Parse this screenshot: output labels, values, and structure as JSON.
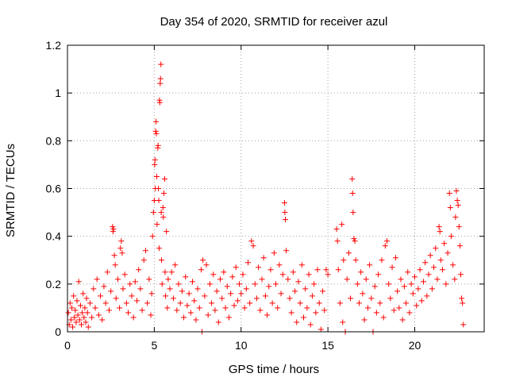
{
  "chart_data": {
    "type": "scatter",
    "title": "Day 354 of 2020, SRMTID for receiver azul",
    "xlabel": "GPS time / hours",
    "ylabel": "SRMTID / TECUs",
    "xlim": [
      0,
      24
    ],
    "ylim": [
      0,
      1.2
    ],
    "xticks": [
      0,
      5,
      10,
      15,
      20
    ],
    "xtick_labels": [
      "0",
      "5",
      "10",
      "15",
      "20"
    ],
    "yticks": [
      0,
      0.2,
      0.4,
      0.6,
      0.8,
      1.0,
      1.2
    ],
    "ytick_labels": [
      "0",
      "0.2",
      "0.4",
      "0.6",
      "0.8",
      "1",
      "1.2"
    ],
    "grid": true,
    "marker": "+",
    "color": "#ff0000",
    "series": [
      {
        "name": "SRMTID",
        "points": [
          [
            0.05,
            0.08
          ],
          [
            0.1,
            0.03
          ],
          [
            0.15,
            0.12
          ],
          [
            0.2,
            0.05
          ],
          [
            0.25,
            0.1
          ],
          [
            0.3,
            0.02
          ],
          [
            0.35,
            0.15
          ],
          [
            0.4,
            0.06
          ],
          [
            0.45,
            0.09
          ],
          [
            0.5,
            0.04
          ],
          [
            0.55,
            0.13
          ],
          [
            0.6,
            0.07
          ],
          [
            0.65,
            0.21
          ],
          [
            0.7,
            0.05
          ],
          [
            0.75,
            0.11
          ],
          [
            0.8,
            0.03
          ],
          [
            0.85,
            0.08
          ],
          [
            0.9,
            0.16
          ],
          [
            0.95,
            0.06
          ],
          [
            1.0,
            0.1
          ],
          [
            1.05,
            0.04
          ],
          [
            1.1,
            0.14
          ],
          [
            1.15,
            0.08
          ],
          [
            1.2,
            0.02
          ],
          [
            1.3,
            0.12
          ],
          [
            1.4,
            0.06
          ],
          [
            1.5,
            0.18
          ],
          [
            1.6,
            0.1
          ],
          [
            1.7,
            0.22
          ],
          [
            1.8,
            0.07
          ],
          [
            1.9,
            0.15
          ],
          [
            2.0,
            0.05
          ],
          [
            2.1,
            0.19
          ],
          [
            2.2,
            0.12
          ],
          [
            2.3,
            0.25
          ],
          [
            2.4,
            0.09
          ],
          [
            2.5,
            0.17
          ],
          [
            2.6,
            0.44
          ],
          [
            2.62,
            0.42
          ],
          [
            2.65,
            0.43
          ],
          [
            2.7,
            0.32
          ],
          [
            2.75,
            0.28
          ],
          [
            2.8,
            0.14
          ],
          [
            2.9,
            0.22
          ],
          [
            3.0,
            0.1
          ],
          [
            3.05,
            0.35
          ],
          [
            3.1,
            0.38
          ],
          [
            3.15,
            0.33
          ],
          [
            3.2,
            0.18
          ],
          [
            3.3,
            0.24
          ],
          [
            3.4,
            0.12
          ],
          [
            3.5,
            0.08
          ],
          [
            3.6,
            0.2
          ],
          [
            3.7,
            0.15
          ],
          [
            3.8,
            0.06
          ],
          [
            3.9,
            0.21
          ],
          [
            4.0,
            0.13
          ],
          [
            4.1,
            0.26
          ],
          [
            4.2,
            0.18
          ],
          [
            4.3,
            0.09
          ],
          [
            4.4,
            0.3
          ],
          [
            4.5,
            0.34
          ],
          [
            4.6,
            0.12
          ],
          [
            4.7,
            0.22
          ],
          [
            4.8,
            0.07
          ],
          [
            4.85,
            0.16
          ],
          [
            4.9,
            0.4
          ],
          [
            4.95,
            0.5
          ],
          [
            5.0,
            0.55
          ],
          [
            5.02,
            0.7
          ],
          [
            5.04,
            0.72
          ],
          [
            5.06,
            0.6
          ],
          [
            5.08,
            0.84
          ],
          [
            5.1,
            0.88
          ],
          [
            5.12,
            0.83
          ],
          [
            5.14,
            0.65
          ],
          [
            5.16,
            0.45
          ],
          [
            5.2,
            0.77
          ],
          [
            5.22,
            0.78
          ],
          [
            5.24,
            0.6
          ],
          [
            5.26,
            0.55
          ],
          [
            5.28,
            0.35
          ],
          [
            5.3,
            0.97
          ],
          [
            5.32,
            0.96
          ],
          [
            5.34,
            1.04
          ],
          [
            5.36,
            1.06
          ],
          [
            5.38,
            1.12
          ],
          [
            5.4,
            0.5
          ],
          [
            5.42,
            0.3
          ],
          [
            5.45,
            0.2
          ],
          [
            5.5,
            0.52
          ],
          [
            5.52,
            0.48
          ],
          [
            5.55,
            0.58
          ],
          [
            5.6,
            0.64
          ],
          [
            5.62,
            0.25
          ],
          [
            5.65,
            0.15
          ],
          [
            5.7,
            0.42
          ],
          [
            5.75,
            0.1
          ],
          [
            5.8,
            0.22
          ],
          [
            5.9,
            0.18
          ],
          [
            6.0,
            0.25
          ],
          [
            6.1,
            0.14
          ],
          [
            6.2,
            0.28
          ],
          [
            6.3,
            0.09
          ],
          [
            6.4,
            0.2
          ],
          [
            6.5,
            0.12
          ],
          [
            6.6,
            0.17
          ],
          [
            6.7,
            0.06
          ],
          [
            6.8,
            0.23
          ],
          [
            6.9,
            0.11
          ],
          [
            7.0,
            0.16
          ],
          [
            7.1,
            0.08
          ],
          [
            7.2,
            0.21
          ],
          [
            7.3,
            0.13
          ],
          [
            7.4,
            0.05
          ],
          [
            7.5,
            0.18
          ],
          [
            7.6,
            0.1
          ],
          [
            7.7,
            0.26
          ],
          [
            7.75,
            0.0
          ],
          [
            7.8,
            0.3
          ],
          [
            7.9,
            0.15
          ],
          [
            8.0,
            0.28
          ],
          [
            8.1,
            0.07
          ],
          [
            8.2,
            0.2
          ],
          [
            8.3,
            0.12
          ],
          [
            8.4,
            0.24
          ],
          [
            8.5,
            0.09
          ],
          [
            8.6,
            0.17
          ],
          [
            8.7,
            0.04
          ],
          [
            8.8,
            0.22
          ],
          [
            8.9,
            0.14
          ],
          [
            9.0,
            0.25
          ],
          [
            9.1,
            0.1
          ],
          [
            9.2,
            0.19
          ],
          [
            9.3,
            0.06
          ],
          [
            9.4,
            0.16
          ],
          [
            9.5,
            0.23
          ],
          [
            9.6,
            0.11
          ],
          [
            9.7,
            0.27
          ],
          [
            9.8,
            0.13
          ],
          [
            9.9,
            0.2
          ],
          [
            10.0,
            0.16
          ],
          [
            10.1,
            0.24
          ],
          [
            10.2,
            0.1
          ],
          [
            10.3,
            0.18
          ],
          [
            10.4,
            0.29
          ],
          [
            10.5,
            0.12
          ],
          [
            10.6,
            0.38
          ],
          [
            10.7,
            0.36
          ],
          [
            10.8,
            0.2
          ],
          [
            10.9,
            0.14
          ],
          [
            11.0,
            0.27
          ],
          [
            11.1,
            0.09
          ],
          [
            11.2,
            0.22
          ],
          [
            11.3,
            0.31
          ],
          [
            11.4,
            0.15
          ],
          [
            11.5,
            0.07
          ],
          [
            11.6,
            0.19
          ],
          [
            11.7,
            0.26
          ],
          [
            11.8,
            0.12
          ],
          [
            11.9,
            0.33
          ],
          [
            12.0,
            0.2
          ],
          [
            12.1,
            0.1
          ],
          [
            12.2,
            0.28
          ],
          [
            12.3,
            0.16
          ],
          [
            12.4,
            0.24
          ],
          [
            12.5,
            0.54
          ],
          [
            12.52,
            0.5
          ],
          [
            12.55,
            0.47
          ],
          [
            12.6,
            0.34
          ],
          [
            12.7,
            0.22
          ],
          [
            12.8,
            0.14
          ],
          [
            12.9,
            0.08
          ],
          [
            13.0,
            0.25
          ],
          [
            13.1,
            0.17
          ],
          [
            13.2,
            0.04
          ],
          [
            13.3,
            0.21
          ],
          [
            13.4,
            0.12
          ],
          [
            13.5,
            0.28
          ],
          [
            13.6,
            0.06
          ],
          [
            13.7,
            0.18
          ],
          [
            13.8,
            0.1
          ],
          [
            13.9,
            0.24
          ],
          [
            14.0,
            0.03
          ],
          [
            14.1,
            0.15
          ],
          [
            14.2,
            0.2
          ],
          [
            14.3,
            0.08
          ],
          [
            14.4,
            0.26
          ],
          [
            14.5,
            0.12
          ],
          [
            14.6,
            0.01
          ],
          [
            14.7,
            0.17
          ],
          [
            14.8,
            0.09
          ],
          [
            14.9,
            0.26
          ],
          [
            15.0,
            0.24
          ],
          [
            15.5,
            0.43
          ],
          [
            15.55,
            0.38
          ],
          [
            15.6,
            0.26
          ],
          [
            15.7,
            0.12
          ],
          [
            15.8,
            0.45
          ],
          [
            15.85,
            0.04
          ],
          [
            15.9,
            0.3
          ],
          [
            16.0,
            0.0
          ],
          [
            16.1,
            0.22
          ],
          [
            16.2,
            0.33
          ],
          [
            16.3,
            0.14
          ],
          [
            16.4,
            0.64
          ],
          [
            16.42,
            0.58
          ],
          [
            16.45,
            0.5
          ],
          [
            16.5,
            0.39
          ],
          [
            16.55,
            0.38
          ],
          [
            16.6,
            0.3
          ],
          [
            16.7,
            0.2
          ],
          [
            16.8,
            0.12
          ],
          [
            16.9,
            0.25
          ],
          [
            17.0,
            0.16
          ],
          [
            17.1,
            0.05
          ],
          [
            17.2,
            0.22
          ],
          [
            17.3,
            0.1
          ],
          [
            17.4,
            0.28
          ],
          [
            17.5,
            0.14
          ],
          [
            17.6,
            0.0
          ],
          [
            17.7,
            0.19
          ],
          [
            17.8,
            0.08
          ],
          [
            17.9,
            0.24
          ],
          [
            18.0,
            0.12
          ],
          [
            18.1,
            0.3
          ],
          [
            18.2,
            0.06
          ],
          [
            18.3,
            0.36
          ],
          [
            18.4,
            0.38
          ],
          [
            18.5,
            0.2
          ],
          [
            18.6,
            0.14
          ],
          [
            18.7,
            0.27
          ],
          [
            18.8,
            0.09
          ],
          [
            18.9,
            0.31
          ],
          [
            19.0,
            0.17
          ],
          [
            19.1,
            0.1
          ],
          [
            19.2,
            0.22
          ],
          [
            19.3,
            0.05
          ],
          [
            19.4,
            0.19
          ],
          [
            19.5,
            0.12
          ],
          [
            19.6,
            0.25
          ],
          [
            19.7,
            0.08
          ],
          [
            19.8,
            0.2
          ],
          [
            19.9,
            0.16
          ],
          [
            20.0,
            0.23
          ],
          [
            20.1,
            0.11
          ],
          [
            20.2,
            0.18
          ],
          [
            20.3,
            0.26
          ],
          [
            20.4,
            0.13
          ],
          [
            20.5,
            0.21
          ],
          [
            20.6,
            0.29
          ],
          [
            20.7,
            0.15
          ],
          [
            20.8,
            0.24
          ],
          [
            20.9,
            0.32
          ],
          [
            21.0,
            0.18
          ],
          [
            21.1,
            0.27
          ],
          [
            21.2,
            0.35
          ],
          [
            21.3,
            0.22
          ],
          [
            21.4,
            0.44
          ],
          [
            21.45,
            0.42
          ],
          [
            21.5,
            0.3
          ],
          [
            21.6,
            0.26
          ],
          [
            21.7,
            0.37
          ],
          [
            21.8,
            0.2
          ],
          [
            21.9,
            0.33
          ],
          [
            22.0,
            0.58
          ],
          [
            22.05,
            0.52
          ],
          [
            22.1,
            0.4
          ],
          [
            22.2,
            0.28
          ],
          [
            22.3,
            0.22
          ],
          [
            22.35,
            0.48
          ],
          [
            22.4,
            0.59
          ],
          [
            22.45,
            0.55
          ],
          [
            22.5,
            0.53
          ],
          [
            22.55,
            0.44
          ],
          [
            22.6,
            0.36
          ],
          [
            22.65,
            0.24
          ],
          [
            22.7,
            0.14
          ],
          [
            22.75,
            0.12
          ],
          [
            22.8,
            0.03
          ]
        ]
      }
    ]
  }
}
